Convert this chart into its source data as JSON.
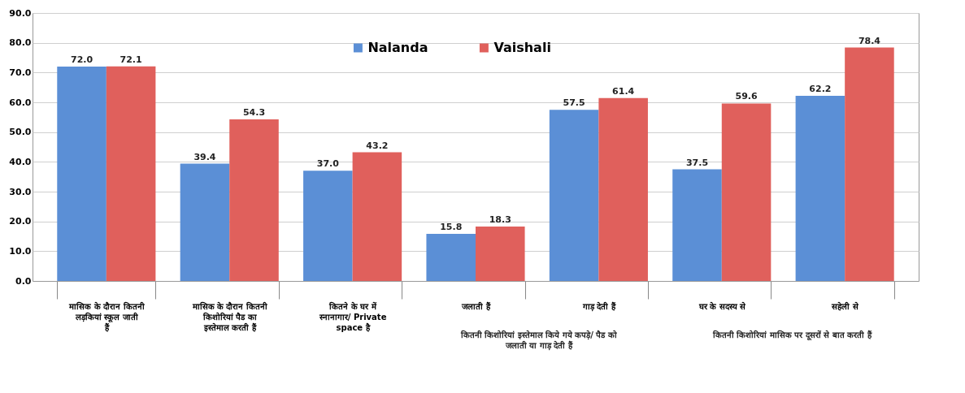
{
  "chart_data": {
    "type": "bar",
    "categories": [
      "मासिक के दौरान कितनी लड़कियां स्कूल जाती हैं",
      "मासिक के दौरान कितनी किशोरियां पैड का इस्तेमाल करती हैं",
      "कितने के घर में स्नानागार/ Private space है",
      "जलाती हैं",
      "गाड़ देती हैं",
      "घर के सदस्य से",
      "सहेली से"
    ],
    "series": [
      {
        "name": "Nalanda",
        "color": "#5b8fd6",
        "values": [
          72.0,
          39.4,
          37.0,
          15.8,
          57.5,
          37.5,
          62.2
        ],
        "value_labels": [
          "72.0",
          "39.4",
          "37.0",
          "15.8",
          "57.5",
          "37.5",
          "62.2"
        ]
      },
      {
        "name": "Vaishali",
        "color": "#e0605c",
        "values": [
          72.1,
          54.3,
          43.2,
          18.3,
          61.4,
          59.6,
          78.4
        ],
        "value_labels": [
          "72.1",
          "54.3",
          "43.2",
          "18.3",
          "61.4",
          "59.6",
          "78.4"
        ]
      }
    ],
    "annotations": [
      "कितनी किशोरियां इस्तेमाल किये गये कपड़े/ पैड को जलाती या गाड़ देती हैं",
      "कितनी किशोरियां मासिक पर दूसरों से बात करती हैं"
    ],
    "ylim": [
      0,
      90
    ],
    "yticks": [
      {
        "value": 0,
        "label": "0.0"
      },
      {
        "value": 10,
        "label": "10.0"
      },
      {
        "value": 20,
        "label": "20.0"
      },
      {
        "value": 30,
        "label": "30.0"
      },
      {
        "value": 40,
        "label": "40.0"
      },
      {
        "value": 50,
        "label": "50.0"
      },
      {
        "value": 60,
        "label": "60.0"
      },
      {
        "value": 70,
        "label": "70.0"
      },
      {
        "value": 80,
        "label": "80.0"
      },
      {
        "value": 90,
        "label": "90.0"
      }
    ],
    "grid": "y",
    "legend": "top"
  }
}
